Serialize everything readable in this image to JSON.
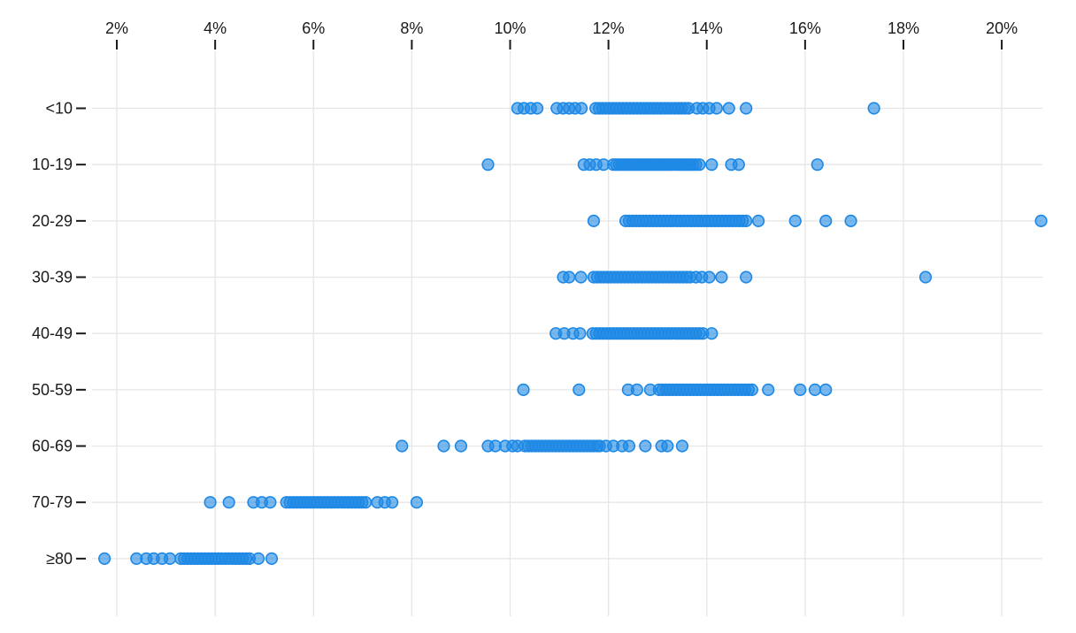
{
  "chart_data": {
    "type": "scatter",
    "variant": "strip-plot",
    "title": "",
    "x_axis": {
      "position": "top",
      "tick_values": [
        2,
        4,
        6,
        8,
        10,
        12,
        14,
        16,
        18,
        20
      ],
      "tick_labels": [
        "2%",
        "4%",
        "6%",
        "8%",
        "10%",
        "12%",
        "14%",
        "16%",
        "18%",
        "20%"
      ],
      "range": [
        1.5,
        20.9
      ],
      "grid": true
    },
    "y_axis": {
      "categories": [
        "<10",
        "10-19",
        "20-29",
        "30-39",
        "40-49",
        "50-59",
        "60-69",
        "70-79",
        "≥80"
      ],
      "grid": true
    },
    "legend": null,
    "series": [
      {
        "category": "<10",
        "values": [
          10.15,
          10.28,
          10.42,
          10.55,
          10.95,
          11.08,
          11.2,
          11.32,
          11.45,
          11.74,
          11.81,
          11.88,
          11.95,
          12.02,
          12.09,
          12.16,
          12.23,
          12.3,
          12.37,
          12.44,
          12.51,
          12.58,
          12.65,
          12.72,
          12.79,
          12.86,
          12.93,
          13.0,
          13.07,
          13.14,
          13.21,
          13.28,
          13.35,
          13.42,
          13.49,
          13.56,
          13.63,
          13.8,
          13.92,
          14.05,
          14.2,
          14.45,
          14.8,
          17.4
        ]
      },
      {
        "category": "10-19",
        "values": [
          9.55,
          11.5,
          11.62,
          11.75,
          11.9,
          12.1,
          12.16,
          12.22,
          12.28,
          12.34,
          12.4,
          12.46,
          12.52,
          12.58,
          12.64,
          12.7,
          12.76,
          12.82,
          12.88,
          12.94,
          13.0,
          13.06,
          13.12,
          13.18,
          13.24,
          13.3,
          13.36,
          13.42,
          13.48,
          13.54,
          13.6,
          13.66,
          13.72,
          13.78,
          13.85,
          14.1,
          14.5,
          14.65,
          16.25
        ]
      },
      {
        "category": "20-29",
        "values": [
          11.7,
          12.35,
          12.42,
          12.49,
          12.56,
          12.63,
          12.7,
          12.77,
          12.84,
          12.91,
          12.98,
          13.05,
          13.12,
          13.19,
          13.26,
          13.33,
          13.4,
          13.47,
          13.54,
          13.61,
          13.68,
          13.75,
          13.82,
          13.89,
          13.96,
          14.03,
          14.1,
          14.17,
          14.24,
          14.31,
          14.38,
          14.45,
          14.52,
          14.59,
          14.66,
          14.73,
          14.8,
          15.05,
          15.8,
          16.42,
          16.93,
          20.8
        ]
      },
      {
        "category": "30-39",
        "values": [
          11.08,
          11.2,
          11.44,
          11.7,
          11.77,
          11.84,
          11.91,
          11.98,
          12.05,
          12.12,
          12.19,
          12.26,
          12.33,
          12.4,
          12.47,
          12.54,
          12.61,
          12.68,
          12.75,
          12.82,
          12.89,
          12.96,
          13.03,
          13.1,
          13.17,
          13.24,
          13.31,
          13.38,
          13.45,
          13.52,
          13.59,
          13.66,
          13.78,
          13.9,
          14.05,
          14.3,
          14.8,
          18.45
        ]
      },
      {
        "category": "40-49",
        "values": [
          10.93,
          11.1,
          11.28,
          11.42,
          11.68,
          11.75,
          11.82,
          11.89,
          11.96,
          12.03,
          12.1,
          12.17,
          12.24,
          12.31,
          12.38,
          12.45,
          12.52,
          12.59,
          12.66,
          12.73,
          12.8,
          12.87,
          12.94,
          13.01,
          13.08,
          13.15,
          13.22,
          13.29,
          13.36,
          13.43,
          13.5,
          13.57,
          13.64,
          13.71,
          13.78,
          13.85,
          13.92,
          14.1
        ]
      },
      {
        "category": "50-59",
        "values": [
          10.27,
          11.4,
          12.4,
          12.58,
          12.85,
          13.03,
          13.1,
          13.17,
          13.24,
          13.31,
          13.38,
          13.45,
          13.52,
          13.59,
          13.66,
          13.73,
          13.8,
          13.87,
          13.94,
          14.01,
          14.08,
          14.15,
          14.22,
          14.29,
          14.36,
          14.43,
          14.5,
          14.57,
          14.64,
          14.71,
          14.78,
          14.85,
          14.92,
          15.25,
          15.9,
          16.2,
          16.42
        ]
      },
      {
        "category": "60-69",
        "values": [
          7.8,
          8.65,
          9.0,
          9.55,
          9.7,
          9.9,
          10.05,
          10.15,
          10.3,
          10.37,
          10.44,
          10.51,
          10.58,
          10.65,
          10.72,
          10.79,
          10.86,
          10.93,
          11.0,
          11.07,
          11.14,
          11.21,
          11.28,
          11.35,
          11.42,
          11.49,
          11.56,
          11.63,
          11.7,
          11.77,
          11.82,
          11.95,
          12.1,
          12.28,
          12.42,
          12.75,
          13.08,
          13.2,
          13.5
        ]
      },
      {
        "category": "70-79",
        "values": [
          3.9,
          4.28,
          4.78,
          4.95,
          5.12,
          5.45,
          5.52,
          5.59,
          5.66,
          5.73,
          5.8,
          5.87,
          5.94,
          6.01,
          6.08,
          6.15,
          6.22,
          6.29,
          6.36,
          6.43,
          6.5,
          6.57,
          6.64,
          6.71,
          6.78,
          6.85,
          6.92,
          6.99,
          7.06,
          7.3,
          7.45,
          7.6,
          8.1
        ]
      },
      {
        "category": "≥80",
        "values": [
          1.75,
          2.4,
          2.6,
          2.75,
          2.92,
          3.08,
          3.3,
          3.37,
          3.44,
          3.51,
          3.58,
          3.65,
          3.72,
          3.79,
          3.86,
          3.93,
          4.0,
          4.07,
          4.14,
          4.21,
          4.28,
          4.35,
          4.42,
          4.49,
          4.56,
          4.63,
          4.7,
          4.88,
          5.15
        ]
      }
    ],
    "marker": {
      "shape": "circle",
      "fill": "#1e88e5",
      "fill_opacity": 0.6,
      "stroke": "#1e88e5",
      "stroke_width": 1.6,
      "radius_px": 6.3
    }
  },
  "colors": {
    "background": "#ffffff",
    "grid": "#e6e6e6",
    "tick": "#1a1a1a",
    "axis_text": "#1a1a1a"
  }
}
